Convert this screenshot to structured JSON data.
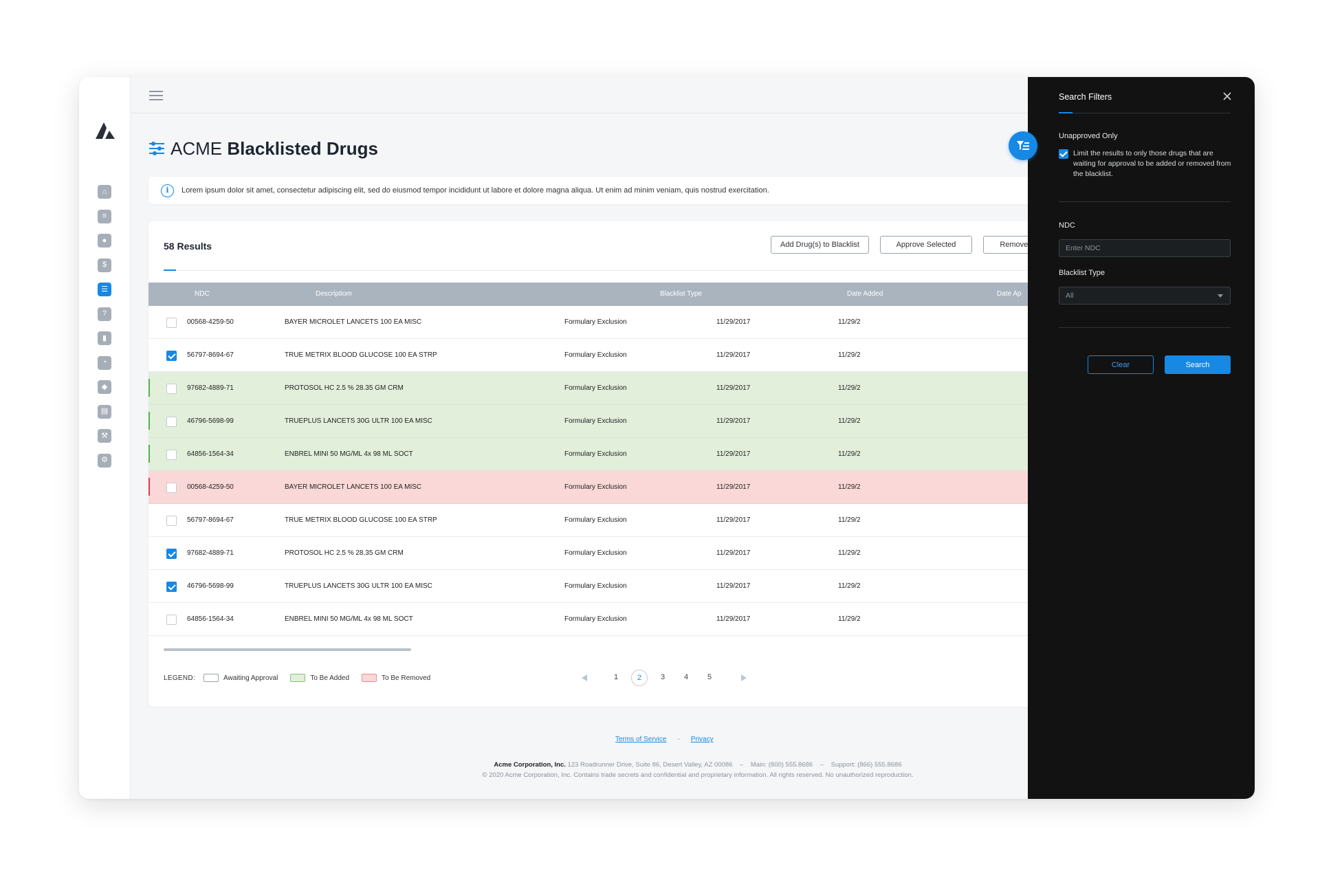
{
  "page": {
    "title_prefix": "ACME",
    "title_main": "Blacklisted Drugs",
    "info_text": "Lorem ipsum dolor sit amet, consectetur adipiscing elit, sed do eiusmod tempor incididunt ut labore et dolore magna aliqua. Ut enim ad minim veniam, quis nostrud exercitation."
  },
  "sidebar": {
    "items": [
      {
        "icon": "home-icon",
        "glyph": "⌂",
        "active": false
      },
      {
        "icon": "document-icon",
        "glyph": "≡",
        "active": false
      },
      {
        "icon": "users-icon",
        "glyph": "●",
        "active": false
      },
      {
        "icon": "dollar-icon",
        "glyph": "$",
        "active": false
      },
      {
        "icon": "sliders-icon",
        "glyph": "☰",
        "active": true
      },
      {
        "icon": "help-icon",
        "glyph": "?",
        "active": false
      },
      {
        "icon": "bar-chart-icon",
        "glyph": "▮",
        "active": false
      },
      {
        "icon": "gauge-icon",
        "glyph": "◔",
        "active": false
      },
      {
        "icon": "pill-icon",
        "glyph": "◆",
        "active": false
      },
      {
        "icon": "clipboard-icon",
        "glyph": "▤",
        "active": false
      },
      {
        "icon": "hammer-icon",
        "glyph": "⚒",
        "active": false
      },
      {
        "icon": "settings-icon",
        "glyph": "⚙",
        "active": false
      }
    ]
  },
  "results": {
    "count_label": "58 Results",
    "buttons": {
      "add": "Add Drug(s) to Blacklist",
      "approve": "Approve Selected",
      "remove": "Remove S"
    }
  },
  "table": {
    "headers": [
      "NDC",
      "Descriptiom",
      "Blacklist Type",
      "Date Added",
      "Date Ap"
    ],
    "rows": [
      {
        "status": "awaiting",
        "checked": false,
        "ndc": "00568-4259-50",
        "description": "BAYER MICROLET LANCETS 100 EA MISC",
        "type": "Formulary Exclusion",
        "date_added": "11/29/2017",
        "date_ap": "11/29/2"
      },
      {
        "status": "awaiting",
        "checked": true,
        "ndc": "56797-8694-67",
        "description": "TRUE METRIX BLOOD GLUCOSE 100 EA STRP",
        "type": "Formulary Exclusion",
        "date_added": "11/29/2017",
        "date_ap": "11/29/2"
      },
      {
        "status": "added",
        "checked": false,
        "ndc": "97682-4889-71",
        "description": "PROTOSOL HC 2.5 % 28.35 GM CRM",
        "type": "Formulary Exclusion",
        "date_added": "11/29/2017",
        "date_ap": "11/29/2"
      },
      {
        "status": "added",
        "checked": false,
        "ndc": "46796-5698-99",
        "description": "TRUEPLUS LANCETS 30G ULTR 100 EA MISC",
        "type": "Formulary Exclusion",
        "date_added": "11/29/2017",
        "date_ap": "11/29/2"
      },
      {
        "status": "added",
        "checked": false,
        "ndc": "64856-1564-34",
        "description": "ENBREL MINI 50 MG/ML 4x 98 ML SOCT",
        "type": "Formulary Exclusion",
        "date_added": "11/29/2017",
        "date_ap": "11/29/2"
      },
      {
        "status": "removed",
        "checked": false,
        "ndc": "00568-4259-50",
        "description": "BAYER MICROLET LANCETS 100 EA MISC",
        "type": "Formulary Exclusion",
        "date_added": "11/29/2017",
        "date_ap": "11/29/2"
      },
      {
        "status": "awaiting",
        "checked": false,
        "ndc": "56797-8694-67",
        "description": "TRUE METRIX BLOOD GLUCOSE 100 EA STRP",
        "type": "Formulary Exclusion",
        "date_added": "11/29/2017",
        "date_ap": "11/29/2"
      },
      {
        "status": "awaiting",
        "checked": true,
        "ndc": "97682-4889-71",
        "description": "PROTOSOL HC 2.5 % 28.35 GM CRM",
        "type": "Formulary Exclusion",
        "date_added": "11/29/2017",
        "date_ap": "11/29/2"
      },
      {
        "status": "awaiting",
        "checked": true,
        "ndc": "46796-5698-99",
        "description": "TRUEPLUS LANCETS 30G ULTR 100 EA MISC",
        "type": "Formulary Exclusion",
        "date_added": "11/29/2017",
        "date_ap": "11/29/2"
      },
      {
        "status": "awaiting",
        "checked": false,
        "ndc": "64856-1564-34",
        "description": "ENBREL MINI 50 MG/ML 4x 98 ML SOCT",
        "type": "Formulary Exclusion",
        "date_added": "11/29/2017",
        "date_ap": "11/29/2"
      }
    ]
  },
  "legend": {
    "title": "LEGEND:",
    "awaiting": "Awaiting Approval",
    "added": "To Be Added",
    "removed": "To Be Removed"
  },
  "pagination": {
    "pages": [
      "1",
      "2",
      "3",
      "4",
      "5"
    ],
    "current": "2"
  },
  "footer": {
    "terms": "Terms of Service",
    "separator": "-",
    "privacy": "Privacy",
    "company": "Acme Corporation, Inc.",
    "address": "123 Roadrunner Drive, Suite 86, Desert Valley, AZ 00086",
    "dash": "–",
    "main_phone": "Main: (800) 555.8686",
    "support_phone": "Support: (866) 555.8686",
    "copyright": "© 2020 Acme Corporation, Inc. Contains trade secrets and confidential and proprietary information. All rights reserved. No unauthorized reproduction."
  },
  "filters": {
    "title": "Search Filters",
    "unapproved_label": "Unapproved Only",
    "unapproved_checked": true,
    "unapproved_desc": "Limit the results to only those drugs that are waiting for approval to be added or removed from the blacklist.",
    "ndc_label": "NDC",
    "ndc_placeholder": "Enter NDC",
    "blacklist_type_label": "Blacklist Type",
    "blacklist_type_value": "All",
    "clear_label": "Clear",
    "search_label": "Search"
  },
  "colors": {
    "accent": "#1788e3",
    "added_row": "#e2efdb",
    "removed_row": "#fad8d8",
    "panel_bg": "#121212"
  }
}
